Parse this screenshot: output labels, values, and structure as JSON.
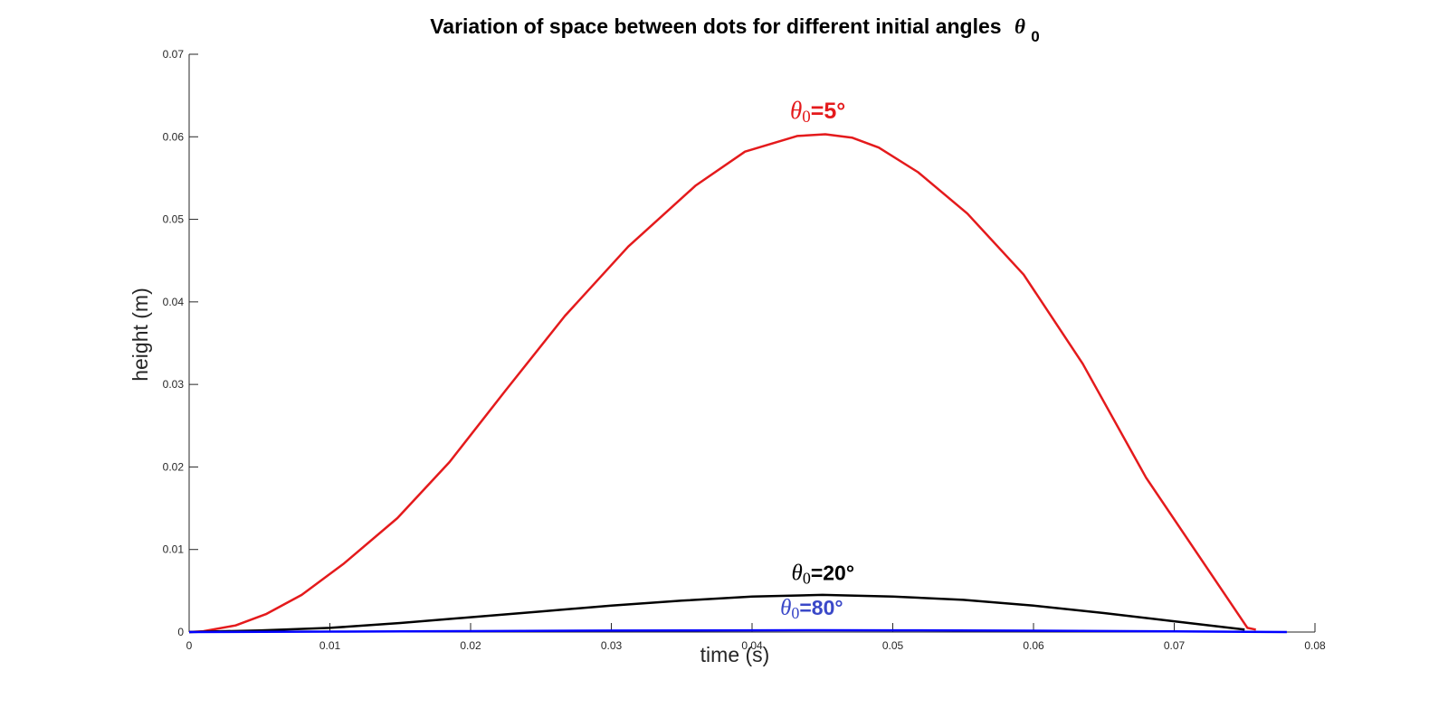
{
  "chart_data": {
    "type": "line",
    "title": "Variation of space between dots for different initial angles",
    "title_symbol": "θ",
    "title_subscript": "0",
    "xlabel": "time (s)",
    "ylabel": "height (m)",
    "xlim": [
      0,
      0.08
    ],
    "ylim": [
      0,
      0.07
    ],
    "xticks": [
      0,
      0.01,
      0.02,
      0.03,
      0.04,
      0.05,
      0.06,
      0.07,
      0.08
    ],
    "xtick_labels": [
      "0",
      "0.01",
      "0.02",
      "0.03",
      "0.04",
      "0.05",
      "0.06",
      "0.07",
      "0.08"
    ],
    "yticks": [
      0,
      0.01,
      0.02,
      0.03,
      0.04,
      0.05,
      0.06,
      0.07
    ],
    "ytick_labels": [
      "0",
      "0.01",
      "0.02",
      "0.03",
      "0.04",
      "0.05",
      "0.06",
      "0.07"
    ],
    "grid": false,
    "series": [
      {
        "color": "#e41a1c",
        "x": [
          0,
          0.001,
          0.0033,
          0.0055,
          0.008,
          0.011,
          0.0148,
          0.0185,
          0.0225,
          0.0267,
          0.0312,
          0.036,
          0.0395,
          0.0432,
          0.0452,
          0.0471,
          0.049,
          0.0518,
          0.0553,
          0.0593,
          0.0635,
          0.068,
          0.0752,
          0.0758
        ],
        "y": [
          0,
          0.0001,
          0.0008,
          0.0022,
          0.0045,
          0.0083,
          0.0138,
          0.0206,
          0.0293,
          0.0383,
          0.0467,
          0.0541,
          0.0582,
          0.0601,
          0.0603,
          0.0599,
          0.0587,
          0.0557,
          0.0507,
          0.0433,
          0.0325,
          0.0187,
          0.0005,
          0.0003
        ]
      },
      {
        "color": "#000000",
        "x": [
          0,
          0.005,
          0.01,
          0.015,
          0.02,
          0.025,
          0.03,
          0.035,
          0.04,
          0.045,
          0.05,
          0.055,
          0.06,
          0.065,
          0.07,
          0.075
        ],
        "y": [
          0,
          0.0002,
          0.0005,
          0.0011,
          0.0018,
          0.0025,
          0.0032,
          0.0038,
          0.0043,
          0.0045,
          0.0043,
          0.0039,
          0.0032,
          0.0023,
          0.0013,
          0.0003
        ]
      },
      {
        "color": "#0000ff",
        "x": [
          0,
          0.01,
          0.02,
          0.03,
          0.04,
          0.045,
          0.05,
          0.06,
          0.07,
          0.078
        ],
        "y": [
          0,
          5e-05,
          0.00011,
          0.00017,
          0.00021,
          0.00022,
          0.00021,
          0.00016,
          9e-05,
          0
        ]
      }
    ],
    "annotations": [
      {
        "symbol": "θ",
        "subscript": "0",
        "value": "=5°",
        "color": "#e41a1c",
        "x": 0.0427,
        "y": 0.0622,
        "size": 27
      },
      {
        "symbol": "θ",
        "subscript": "0",
        "value": "=20°",
        "color": "#000000",
        "x": 0.0428,
        "y": 0.0063,
        "size": 25
      },
      {
        "symbol": "θ",
        "subscript": "0",
        "value": "=80°",
        "color": "#3a48c8",
        "x": 0.042,
        "y": 0.0021,
        "size": 25
      }
    ]
  }
}
